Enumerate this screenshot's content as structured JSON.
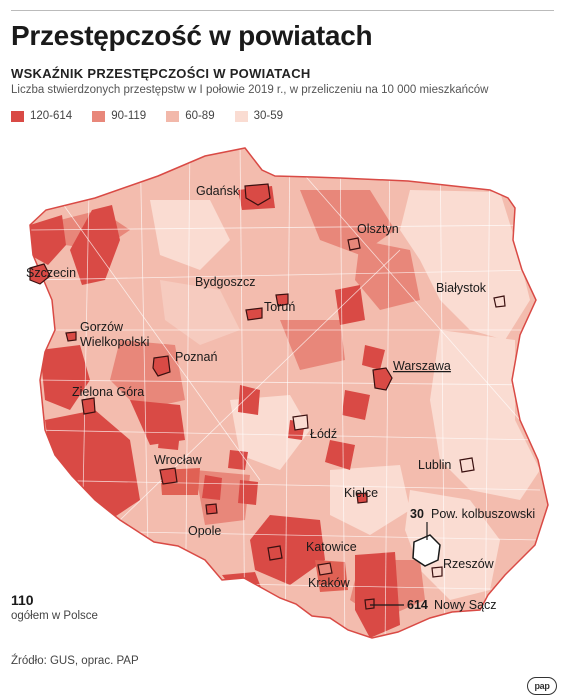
{
  "title": "Przestępczość w powiatach",
  "subtitle": "WSKAŹNIK PRZESTĘPCZOŚCI W POWIATACH",
  "description": "Liczba stwierdzonych przestępstw w I połowie 2019 r., w przeliczeniu na 10 000 mieszkańców",
  "legend": [
    {
      "label": "120-614",
      "color": "#d94a45"
    },
    {
      "label": "90-119",
      "color": "#e8877a"
    },
    {
      "label": "60-89",
      "color": "#f2b8aa"
    },
    {
      "label": "30-59",
      "color": "#fadcd2"
    }
  ],
  "map_colors": {
    "outline": "#7a1e1e",
    "city_border": "#3a1010",
    "city_fill": "#d94a45"
  },
  "cities": {
    "gdansk": "Gdańsk",
    "olsztyn": "Olsztyn",
    "szczecin": "Szczecin",
    "bydgoszcz": "Bydgoszcz",
    "torun": "Toruń",
    "bialystok": "Białystok",
    "gorzow_1": "Gorzów",
    "gorzow_2": "Wielkopolski",
    "poznan": "Poznań",
    "warszawa": "Warszawa",
    "zielona_gora": "Zielona Góra",
    "lodz": "Łódź",
    "lublin": "Lublin",
    "wroclaw": "Wrocław",
    "kielce": "Kielce",
    "opole": "Opole",
    "katowice": "Katowice",
    "rzeszow": "Rzeszów",
    "krakow": "Kraków"
  },
  "callouts": {
    "kolbuszowski_value": "30",
    "kolbuszowski_label": "Pow. kolbuszowski",
    "nowy_sacz_value": "614",
    "nowy_sacz_label": "Nowy Sącz"
  },
  "national": {
    "value": "110",
    "label": "ogółem w Polsce"
  },
  "source": "Źródło: GUS, oprac. PAP",
  "logo": "pap"
}
